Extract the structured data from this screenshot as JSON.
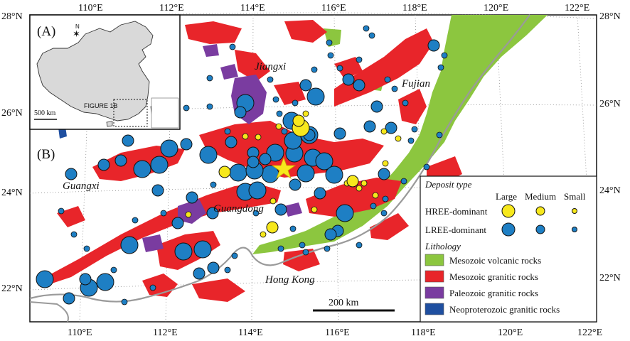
{
  "title": "",
  "latitude_ticks": [
    "28°N",
    "26°N",
    "24°N",
    "22°N"
  ],
  "longitude_ticks_top": [
    "110°E",
    "112°E",
    "114°E",
    "116°E",
    "118°E",
    "120°E",
    "122°E"
  ],
  "longitude_ticks_bottom": [
    "110°E",
    "112°E",
    "114°E",
    "116°E",
    "118°E",
    "120°E",
    "122°E"
  ],
  "regions": {
    "jiangxi": "Jiangxi",
    "fujian": "Fujian",
    "guangxi": "Guangxi",
    "guangdong": "Guangdong",
    "hongkong": "Hong Kong"
  },
  "inset": {
    "panel_label": "(A)",
    "north_label": "N",
    "figure_label": "FIGURE 1B",
    "scale_label": "500 km"
  },
  "main_panel_label": "(B)",
  "scale_bar_label": "200 km",
  "legend": {
    "deposit_title": "Deposit type",
    "sizes": [
      "Large",
      "Medium",
      "Small"
    ],
    "hree_label": "HREE-dominant",
    "lree_label": "LREE-dominant",
    "lithology_title": "Lithology",
    "lithology": [
      {
        "label": "Mesozoic volcanic rocks",
        "color": "#8cc63f"
      },
      {
        "label": "Mesozoic granitic rocks",
        "color": "#e8252a"
      },
      {
        "label": "Paleozoic granitic rocks",
        "color": "#7a3ca0"
      },
      {
        "label": "Neoproterozoic granitic rocks",
        "color": "#1f4fa0"
      }
    ]
  },
  "colors": {
    "hree": "#f7e81c",
    "lree": "#1e7fc4",
    "star": "#f7e81c",
    "coast": "#9a9a9a",
    "land_inset": "#d9d9d9"
  }
}
